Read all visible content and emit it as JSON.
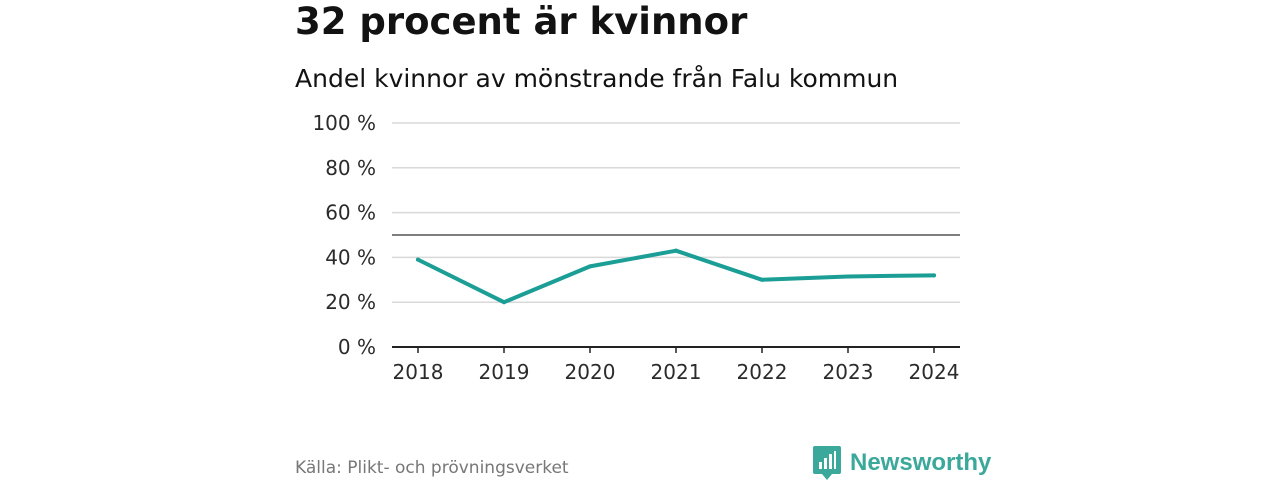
{
  "header": {
    "title": "32 procent är kvinnor",
    "subtitle": "Andel kvinnor av mönstrande från Falu kommun"
  },
  "footer": {
    "source": "Källa: Plikt- och prövningsverket",
    "brand": "Newsworthy"
  },
  "colors": {
    "line": "#1a9e96",
    "reference": "#555555",
    "grid": "#d9d9d9",
    "axis": "#222222",
    "brand": "#3aa89a"
  },
  "chart_data": {
    "type": "line",
    "title": "32 procent är kvinnor",
    "subtitle": "Andel kvinnor av mönstrande från Falu kommun",
    "xlabel": "",
    "ylabel": "",
    "categories": [
      "2018",
      "2019",
      "2020",
      "2021",
      "2022",
      "2023",
      "2024"
    ],
    "series": [
      {
        "name": "Andel kvinnor",
        "values": [
          39,
          20,
          36,
          43,
          30,
          31.5,
          32
        ]
      }
    ],
    "reference_line": 50,
    "ylim": [
      0,
      100
    ],
    "yticks": [
      0,
      20,
      40,
      60,
      80,
      100
    ],
    "ytick_labels": [
      "0 %",
      "20 %",
      "40 %",
      "60 %",
      "80 %",
      "100 %"
    ],
    "grid": true,
    "legend": "none"
  }
}
